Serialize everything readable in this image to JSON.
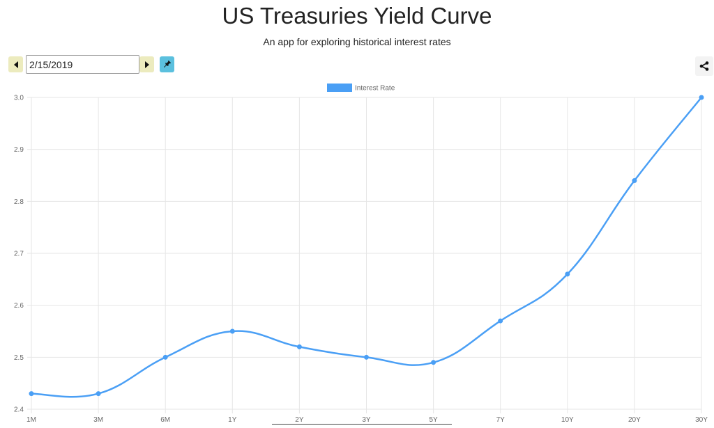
{
  "header": {
    "title": "US Treasuries Yield Curve",
    "subtitle": "An app for exploring historical interest rates"
  },
  "controls": {
    "date_value": "2/15/2019",
    "prev_icon": "triangle-left-icon",
    "next_icon": "triangle-right-icon",
    "pin_icon": "pin-icon",
    "share_icon": "share-icon",
    "nav_button_color": "#ecebbe",
    "pin_button_color": "#5bc0de"
  },
  "chart_data": {
    "type": "line",
    "title": "",
    "xlabel": "",
    "ylabel": "",
    "categories": [
      "1M",
      "3M",
      "6M",
      "1Y",
      "2Y",
      "3Y",
      "5Y",
      "7Y",
      "10Y",
      "20Y",
      "30Y"
    ],
    "series": [
      {
        "name": "Interest Rate",
        "color": "#4a9ff5",
        "values": [
          2.43,
          2.43,
          2.5,
          2.55,
          2.52,
          2.5,
          2.49,
          2.57,
          2.66,
          2.84,
          3.0
        ]
      }
    ],
    "ylim": [
      2.4,
      3.0
    ],
    "yticks": [
      "2.4",
      "2.5",
      "2.6",
      "2.7",
      "2.8",
      "2.9",
      "3.0"
    ],
    "grid": true,
    "legend_position": "top-center",
    "smooth": true
  }
}
